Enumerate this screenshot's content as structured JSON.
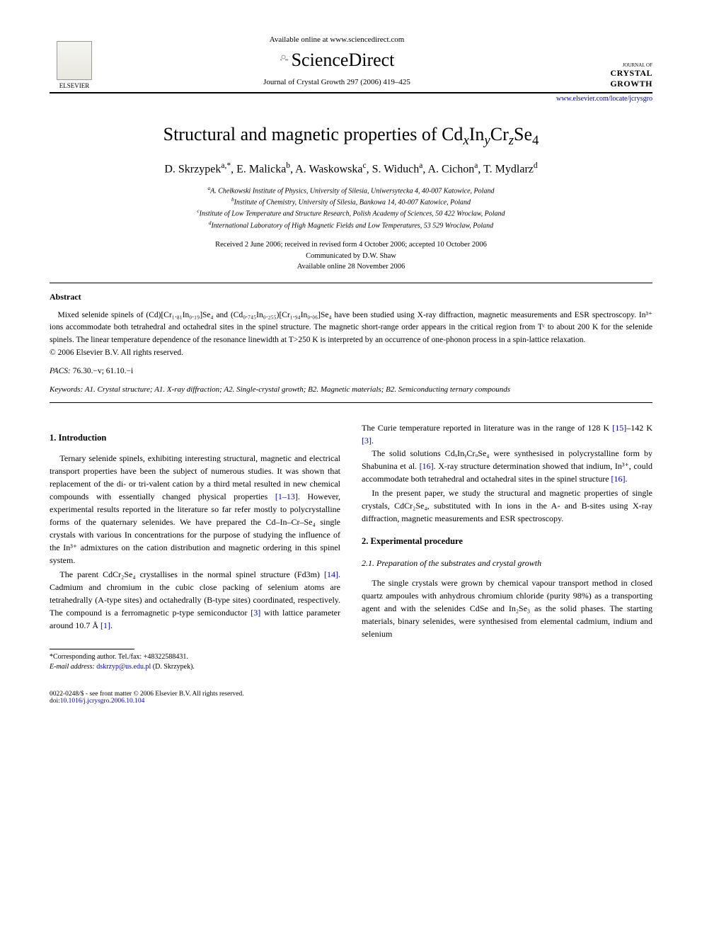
{
  "header": {
    "available_online": "Available online at www.sciencedirect.com",
    "sd_name": "ScienceDirect",
    "elsevier_label": "ELSEVIER",
    "journal_small": "JOURNAL OF",
    "journal_large1": "CRYSTAL",
    "journal_large2": "GROWTH",
    "citation": "Journal of Crystal Growth 297 (2006) 419–425",
    "url": "www.elsevier.com/locate/jcrysgro"
  },
  "title_parts": {
    "pre": "Structural and magnetic properties of Cd",
    "x": "x",
    "in": "In",
    "y": "y",
    "cr": "Cr",
    "z": "z",
    "se": "Se",
    "four": "4"
  },
  "authors_line": "D. Skrzypek",
  "authors": {
    "a1": "D. Skrzypek",
    "a1_aff": "a,",
    "a1_star": "*",
    "a2": ", E. Malicka",
    "a2_aff": "b",
    "a3": ", A. Waskowska",
    "a3_aff": "c",
    "a4": ", S. Widuch",
    "a4_aff": "a",
    "a5": ", A. Cichon",
    "a5_aff": "a",
    "a6": ", T. Mydlarz",
    "a6_aff": "d"
  },
  "affiliations": {
    "a": "A. Chełkowski Institute of Physics, University of Silesia, Uniwersytecka 4, 40-007 Katowice, Poland",
    "b": "Institute of Chemistry, University of Silesia, Bankowa 14, 40-007 Katowice, Poland",
    "c": "Institute of Low Temperature and Structure Research, Polish Academy of Sciences, 50 422 Wroclaw, Poland",
    "d": "International Laboratory of High Magnetic Fields and Low Temperatures, 53 529 Wroclaw, Poland"
  },
  "dates": {
    "received": "Received 2 June 2006; received in revised form 4 October 2006; accepted 10 October 2006",
    "communicated": "Communicated by D.W. Shaw",
    "online": "Available online 28 November 2006"
  },
  "abstract": {
    "heading": "Abstract",
    "body": "Mixed selenide spinels of (Cd)[Cr₁.₈₁In₀.₁₉]Se₄ and (Cd₀.₇₄₅In₀.₂₅₅)[Cr₁.₉₄In₀.₀₆]Se₄ have been studied using X-ray diffraction, magnetic measurements and ESR spectroscopy. In³⁺ ions accommodate both tetrahedral and octahedral sites in the spinel structure. The magnetic short-range order appears in the critical region from Tᶜ to about 200 K for the selenide spinels. The linear temperature dependence of the resonance linewidth at T>250 K is interpreted by an occurrence of one-phonon process in a spin-lattice relaxation.",
    "copyright": "© 2006 Elsevier B.V. All rights reserved."
  },
  "pacs": {
    "label": "PACS:",
    "value": " 76.30.−v; 61.10.−i"
  },
  "keywords": {
    "label": "Keywords:",
    "value": " A1. Crystal structure; A1. X-ray diffraction; A2. Single-crystal growth; B2. Magnetic materials; B2. Semiconducting ternary compounds"
  },
  "body": {
    "sec1_heading": "1.  Introduction",
    "sec1_p1a": "Ternary selenide spinels, exhibiting interesting structural, magnetic and electrical transport properties have been the subject of numerous studies. It was shown that replacement of the di- or tri-valent cation by a third metal resulted in new chemical compounds with essentially changed physical properties ",
    "ref_1_13": "[1–13]",
    "sec1_p1b": ". However, experimental results reported in the literature so far refer mostly to polycrystalline forms of the quaternary selenides. We have prepared the Cd–In–Cr–Se₄ single crystals with various In concentrations for the purpose of studying the influence of the In³⁺ admixtures on the cation distribution and magnetic ordering in this spinel system.",
    "sec1_p2a": "The parent CdCr₂Se₄ crystallises in the normal spinel structure (Fd3m) ",
    "ref_14": "[14]",
    "sec1_p2b": ". Cadmium and chromium in the cubic close packing of selenium atoms are tetrahedrally (A-type sites) and octahedrally (B-type sites) coordinated, respectively. The compound is a ferromagnetic p-type semiconductor ",
    "ref_3a": "[3]",
    "sec1_p2c": " with lattice parameter around 10.7 Å ",
    "ref_1": "[1]",
    "sec1_p2d": ".",
    "col2_p1a": "The Curie temperature reported in literature was in the range of 128 K ",
    "ref_15": "[15]",
    "col2_p1b": "–142 K ",
    "ref_3b": "[3]",
    "col2_p1c": ".",
    "col2_p2a": "The solid solutions CdₓInᵧCrᵤSe₄ were synthesised in polycrystalline form by Shabunina et al. ",
    "ref_16a": "[16]",
    "col2_p2b": ". X-ray structure determination showed that indium, In³⁺, could accommodate both tetrahedral and octahedral sites in the spinel structure ",
    "ref_16b": "[16]",
    "col2_p2c": ".",
    "col2_p3": "In the present paper, we study the structural and magnetic properties of single crystals, CdCr₂Se₄, substituted with In ions in the A- and B-sites using X-ray diffraction, magnetic measurements and ESR spectroscopy.",
    "sec2_heading": "2.  Experimental procedure",
    "sec21_heading": "2.1.  Preparation of the substrates and crystal growth",
    "sec21_p1": "The single crystals were grown by chemical vapour transport method in closed quartz ampoules with anhydrous chromium chloride (purity 98%) as a transporting agent and with the selenides CdSe and In₂Se₃ as the solid phases. The starting materials, binary selenides, were synthesised from elemental cadmium, indium and selenium"
  },
  "footnote": {
    "corr": "*Corresponding author. Tel./fax: +48322588431.",
    "email_label": "E-mail address: ",
    "email": "dskrzyp@us.edu.pl",
    "email_after": " (D. Skrzypek)."
  },
  "footer": {
    "left1": "0022-0248/$ - see front matter © 2006 Elsevier B.V. All rights reserved.",
    "left2_pre": "doi:",
    "left2_doi": "10.1016/j.jcrysgro.2006.10.104"
  },
  "colors": {
    "link": "#0000cc",
    "text": "#000000",
    "bg": "#ffffff"
  }
}
